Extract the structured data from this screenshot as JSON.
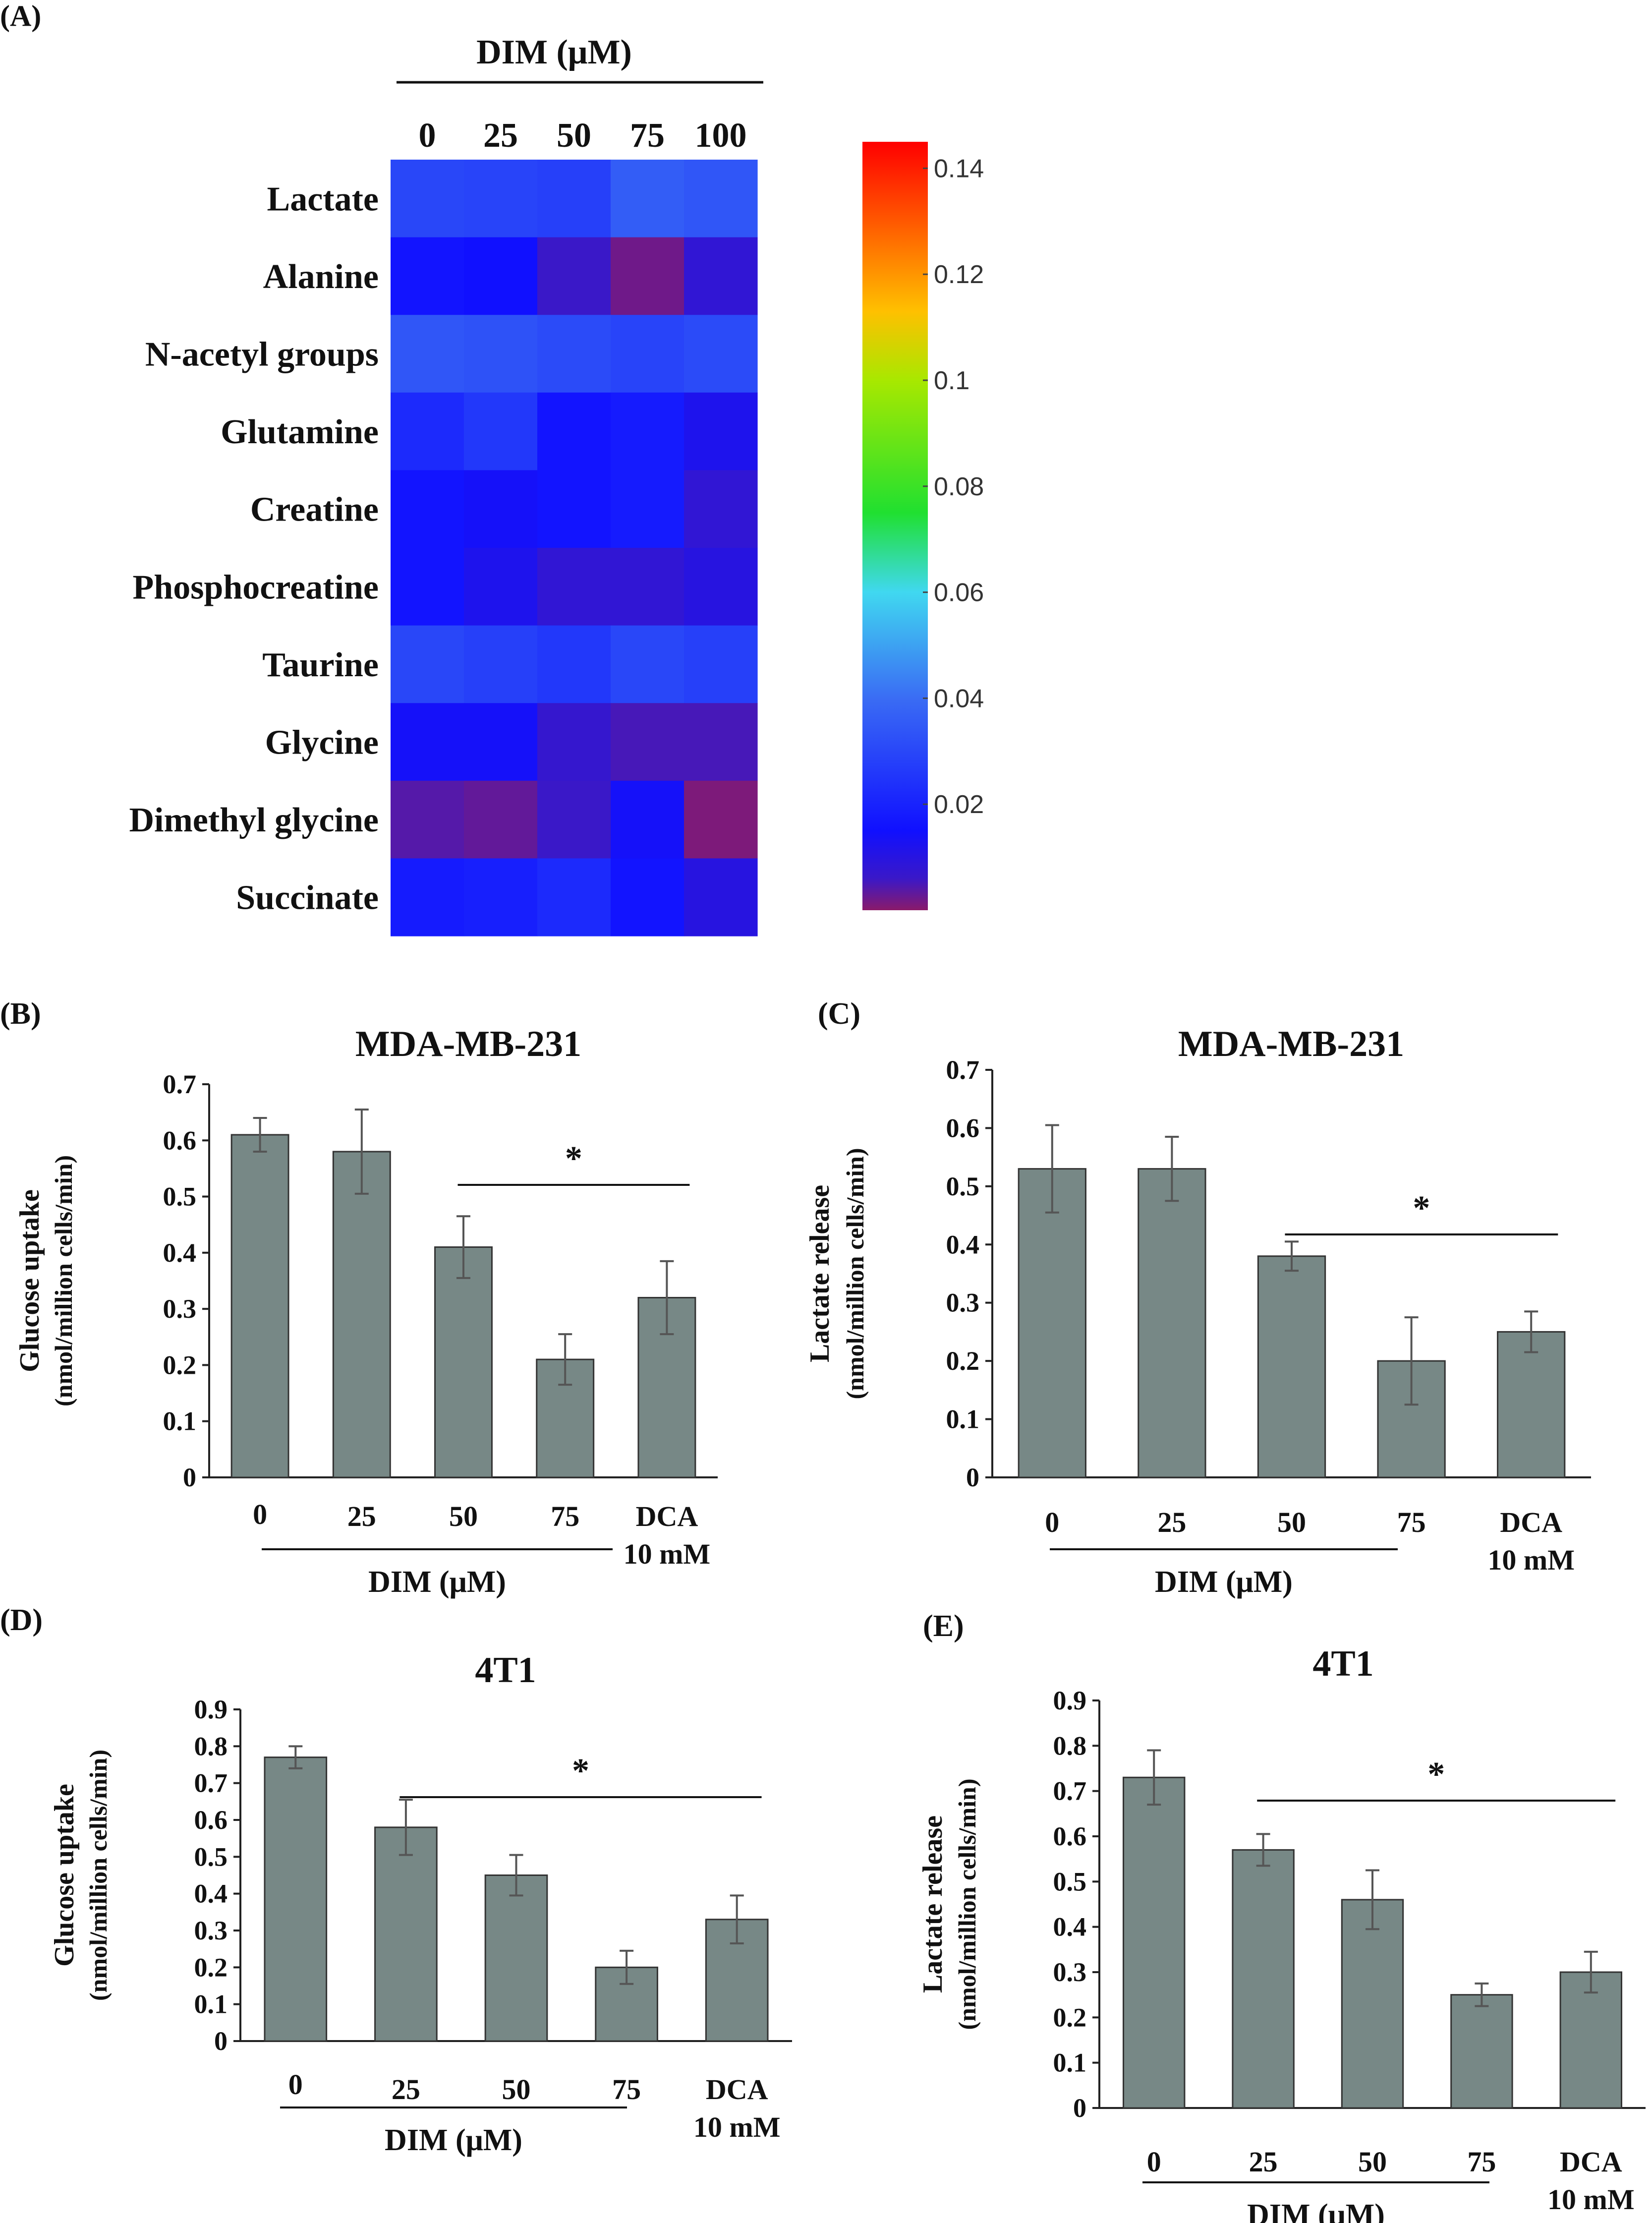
{
  "chart_data": [
    {
      "id": "A",
      "panel_label": "(A)",
      "type": "heatmap",
      "header": "DIM (μM)",
      "columns": [
        "0",
        "25",
        "50",
        "75",
        "100"
      ],
      "rows": [
        "Lactate",
        "Alanine",
        "N-acetyl groups",
        "Glutamine",
        "Creatine",
        "Phosphocreatine",
        "Taurine",
        "Glycine",
        "Dimethyl glycine",
        "Succinate"
      ],
      "values": [
        [
          0.03,
          0.029,
          0.028,
          0.036,
          0.034
        ],
        [
          0.016,
          0.015,
          0.006,
          0.002,
          0.008
        ],
        [
          0.034,
          0.033,
          0.031,
          0.029,
          0.031
        ],
        [
          0.022,
          0.026,
          0.016,
          0.018,
          0.012
        ],
        [
          0.016,
          0.014,
          0.016,
          0.018,
          0.008
        ],
        [
          0.016,
          0.012,
          0.008,
          0.008,
          0.01
        ],
        [
          0.03,
          0.028,
          0.026,
          0.03,
          0.028
        ],
        [
          0.014,
          0.014,
          0.007,
          0.005,
          0.005
        ],
        [
          0.004,
          0.003,
          0.006,
          0.014,
          0.001
        ],
        [
          0.018,
          0.019,
          0.022,
          0.016,
          0.01
        ]
      ],
      "colorbar": {
        "min": 0,
        "max": 0.145,
        "ticks": [
          "0.14",
          "0.12",
          "0.1",
          "0.08",
          "0.06",
          "0.04",
          "0.02"
        ],
        "tick_values": [
          0.14,
          0.12,
          0.1,
          0.08,
          0.06,
          0.04,
          0.02
        ],
        "stops": [
          {
            "v": 0.0,
            "c": "#8a1a6a"
          },
          {
            "v": 0.006,
            "c": "#3a18c8"
          },
          {
            "v": 0.015,
            "c": "#1010ff"
          },
          {
            "v": 0.04,
            "c": "#3a6cf4"
          },
          {
            "v": 0.06,
            "c": "#40d8f0"
          },
          {
            "v": 0.075,
            "c": "#20e030"
          },
          {
            "v": 0.1,
            "c": "#a8e800"
          },
          {
            "v": 0.113,
            "c": "#ffc000"
          },
          {
            "v": 0.13,
            "c": "#ff5800"
          },
          {
            "v": 0.145,
            "c": "#ff0000"
          }
        ]
      }
    },
    {
      "id": "B",
      "panel_label": "(B)",
      "type": "bar",
      "title": "MDA-MB-231",
      "ylabel": [
        "Glucose uptake",
        "(nmol/million cells/min)"
      ],
      "ylim": [
        0,
        0.7
      ],
      "yticks": [
        "0",
        "0.1",
        "0.2",
        "0.3",
        "0.4",
        "0.5",
        "0.6",
        "0.7"
      ],
      "categories": [
        "0",
        "25",
        "50",
        "75",
        "DCA"
      ],
      "category_sub": [
        "",
        "",
        "",
        "",
        "10 mM"
      ],
      "values": [
        0.61,
        0.58,
        0.41,
        0.21,
        0.32
      ],
      "errors": [
        0.03,
        0.075,
        0.055,
        0.045,
        0.065
      ],
      "xgroup_label": "DIM (μM)",
      "significance": {
        "label": "*",
        "from": 2,
        "to": 4
      },
      "bar_color": "#778886"
    },
    {
      "id": "C",
      "panel_label": "(C)",
      "type": "bar",
      "title": "MDA-MB-231",
      "ylabel": [
        "Lactate release",
        "(nmol/million cells/min)"
      ],
      "ylim": [
        0,
        0.7
      ],
      "yticks": [
        "0",
        "0.1",
        "0.2",
        "0.3",
        "0.4",
        "0.5",
        "0.6",
        "0.7"
      ],
      "categories": [
        "0",
        "25",
        "50",
        "75",
        "DCA"
      ],
      "category_sub": [
        "",
        "",
        "",
        "",
        "10 mM"
      ],
      "values": [
        0.53,
        0.53,
        0.38,
        0.2,
        0.25
      ],
      "errors": [
        0.075,
        0.055,
        0.025,
        0.075,
        0.035
      ],
      "xgroup_label": "DIM (μM)",
      "significance": {
        "label": "*",
        "from": 2,
        "to": 4
      },
      "bar_color": "#778886"
    },
    {
      "id": "D",
      "panel_label": "(D)",
      "type": "bar",
      "title": "4T1",
      "ylabel": [
        "Glucose uptake",
        "(nmol/million cells/min)"
      ],
      "ylim": [
        0,
        0.9
      ],
      "yticks": [
        "0",
        "0.1",
        "0.2",
        "0.3",
        "0.4",
        "0.5",
        "0.6",
        "0.7",
        "0.8",
        "0.9"
      ],
      "categories": [
        "0",
        "25",
        "50",
        "75",
        "DCA"
      ],
      "category_sub": [
        "",
        "",
        "",
        "",
        "10 mM"
      ],
      "values": [
        0.77,
        0.58,
        0.45,
        0.2,
        0.33
      ],
      "errors": [
        0.03,
        0.075,
        0.055,
        0.045,
        0.065
      ],
      "xgroup_label": "DIM (μM)",
      "significance": {
        "label": "*",
        "from": 1,
        "to": 4
      },
      "bar_color": "#778886"
    },
    {
      "id": "E",
      "panel_label": "(E)",
      "type": "bar",
      "title": "4T1",
      "ylabel": [
        "Lactate release",
        "(nmol/million cells/min)"
      ],
      "ylim": [
        0,
        0.9
      ],
      "yticks": [
        "0",
        "0.1",
        "0.2",
        "0.3",
        "0.4",
        "0.5",
        "0.6",
        "0.7",
        "0.8",
        "0.9"
      ],
      "categories": [
        "0",
        "25",
        "50",
        "75",
        "DCA"
      ],
      "category_sub": [
        "",
        "",
        "",
        "",
        "10 mM"
      ],
      "values": [
        0.73,
        0.57,
        0.46,
        0.25,
        0.3
      ],
      "errors": [
        0.06,
        0.035,
        0.065,
        0.025,
        0.045
      ],
      "xgroup_label": "DIM (μM)",
      "significance": {
        "label": "*",
        "from": 1,
        "to": 4
      },
      "bar_color": "#778886"
    }
  ]
}
